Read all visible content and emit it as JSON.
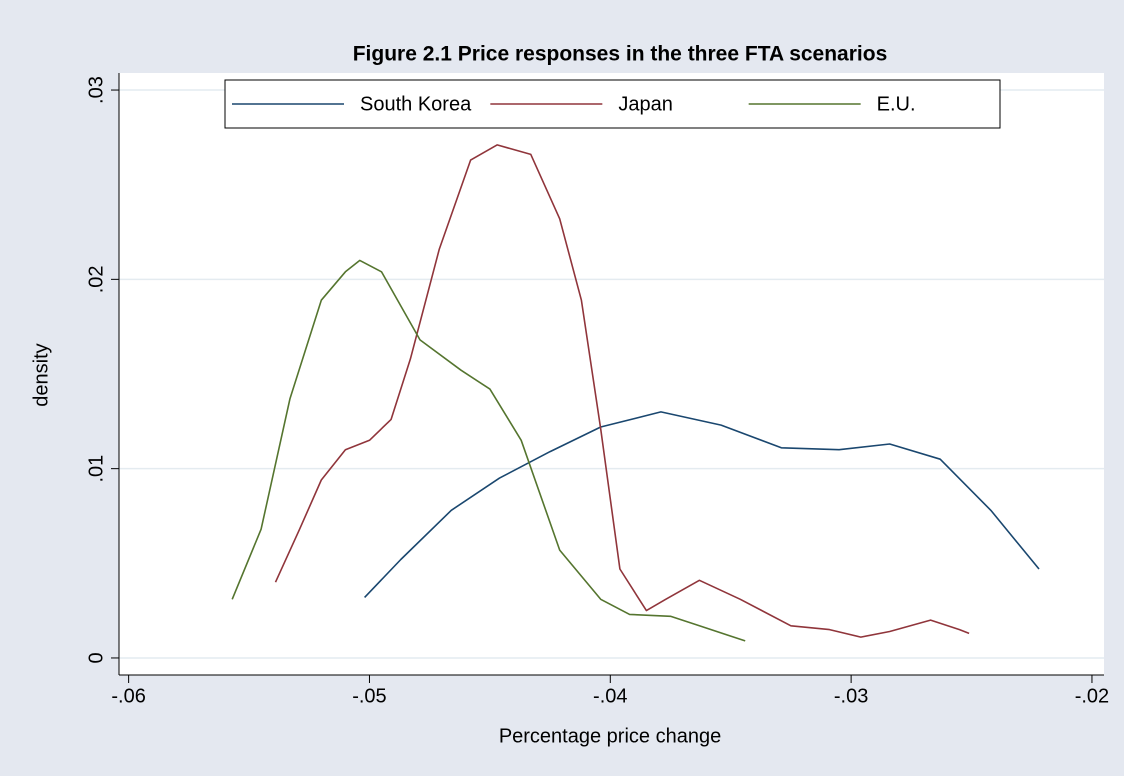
{
  "chart_data": {
    "type": "line",
    "title": "Figure 2.1 Price responses in the three FTA scenarios",
    "x_label": "Percentage price change",
    "y_label": "density",
    "xlim": [
      -0.0604,
      -0.0195
    ],
    "ylim": [
      -0.0009,
      0.0309
    ],
    "xticks": [
      {
        "value": -0.06,
        "label": "-.06"
      },
      {
        "value": -0.05,
        "label": "-.05"
      },
      {
        "value": -0.04,
        "label": "-.04"
      },
      {
        "value": -0.03,
        "label": "-.03"
      },
      {
        "value": -0.02,
        "label": "-.02"
      }
    ],
    "yticks": [
      0,
      {
        "value": 0.01,
        "label": ".01"
      },
      {
        "value": 0.02,
        "label": ".02"
      },
      {
        "value": 0.03,
        "label": ".03"
      }
    ],
    "grid": true,
    "legend": "top",
    "series": [
      {
        "name": "South Korea",
        "color": "#1a476f",
        "x": [
          -0.0502,
          -0.0487,
          -0.0466,
          -0.0446,
          -0.0425,
          -0.0404,
          -0.0379,
          -0.0354,
          -0.0329,
          -0.0305,
          -0.0284,
          -0.0263,
          -0.0242,
          -0.0222
        ],
        "values": [
          0.0032,
          0.0052,
          0.0078,
          0.0095,
          0.0109,
          0.0122,
          0.013,
          0.0123,
          0.0111,
          0.011,
          0.0113,
          0.0105,
          0.0078,
          0.0047
        ]
      },
      {
        "name": "Japan",
        "color": "#90353b",
        "x": [
          -0.0539,
          -0.0529,
          -0.052,
          -0.051,
          -0.05,
          -0.0491,
          -0.0483,
          -0.0471,
          -0.0458,
          -0.0447,
          -0.0433,
          -0.0421,
          -0.0412,
          -0.0404,
          -0.0396,
          -0.0385,
          -0.0377,
          -0.0363,
          -0.0346,
          -0.0325,
          -0.0309,
          -0.0296,
          -0.0284,
          -0.0267,
          -0.0255,
          -0.0251
        ],
        "values": [
          0.004,
          0.0068,
          0.0094,
          0.011,
          0.0115,
          0.0126,
          0.0158,
          0.0216,
          0.0263,
          0.0271,
          0.0266,
          0.0232,
          0.0189,
          0.0121,
          0.0047,
          0.0025,
          0.0031,
          0.0041,
          0.0031,
          0.0017,
          0.0015,
          0.0011,
          0.0014,
          0.002,
          0.0015,
          0.0013
        ]
      },
      {
        "name": "E.U.",
        "color": "#55752f",
        "x": [
          -0.0557,
          -0.0545,
          -0.0533,
          -0.052,
          -0.051,
          -0.0504,
          -0.0495,
          -0.0479,
          -0.0462,
          -0.045,
          -0.0437,
          -0.0421,
          -0.0404,
          -0.0392,
          -0.0375,
          -0.0363,
          -0.0344
        ],
        "values": [
          0.0031,
          0.0068,
          0.0137,
          0.0189,
          0.0204,
          0.021,
          0.0204,
          0.0168,
          0.0152,
          0.0142,
          0.0115,
          0.0057,
          0.0031,
          0.0023,
          0.0022,
          0.0017,
          0.0009
        ]
      }
    ]
  }
}
